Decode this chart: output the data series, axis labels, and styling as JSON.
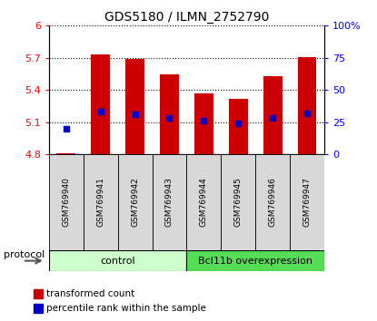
{
  "title": "GDS5180 / ILMN_2752790",
  "samples": [
    "GSM769940",
    "GSM769941",
    "GSM769942",
    "GSM769943",
    "GSM769944",
    "GSM769945",
    "GSM769946",
    "GSM769947"
  ],
  "bar_bottom": 4.8,
  "bar_tops": [
    4.81,
    5.73,
    5.69,
    5.545,
    5.37,
    5.32,
    5.53,
    5.71
  ],
  "percentile_ranks": [
    20,
    33,
    31,
    28.5,
    26,
    24,
    28,
    32
  ],
  "ylim_left": [
    4.8,
    6.0
  ],
  "ylim_right": [
    0,
    100
  ],
  "yticks_left": [
    4.8,
    5.1,
    5.4,
    5.7,
    6.0
  ],
  "yticks_right": [
    0,
    25,
    50,
    75,
    100
  ],
  "ytick_labels_left": [
    "4.8",
    "5.1",
    "5.4",
    "5.7",
    "6"
  ],
  "ytick_labels_right": [
    "0",
    "25",
    "50",
    "75",
    "100%"
  ],
  "bar_color": "#cc0000",
  "dot_color": "#0000cc",
  "groups": [
    {
      "label": "control",
      "start": 0,
      "end": 4,
      "color": "#ccffcc"
    },
    {
      "label": "Bcl11b overexpression",
      "start": 4,
      "end": 8,
      "color": "#55dd55"
    }
  ],
  "protocol_label": "protocol",
  "legend_items": [
    {
      "label": "transformed count",
      "color": "#cc0000"
    },
    {
      "label": "percentile rank within the sample",
      "color": "#0000cc"
    }
  ]
}
